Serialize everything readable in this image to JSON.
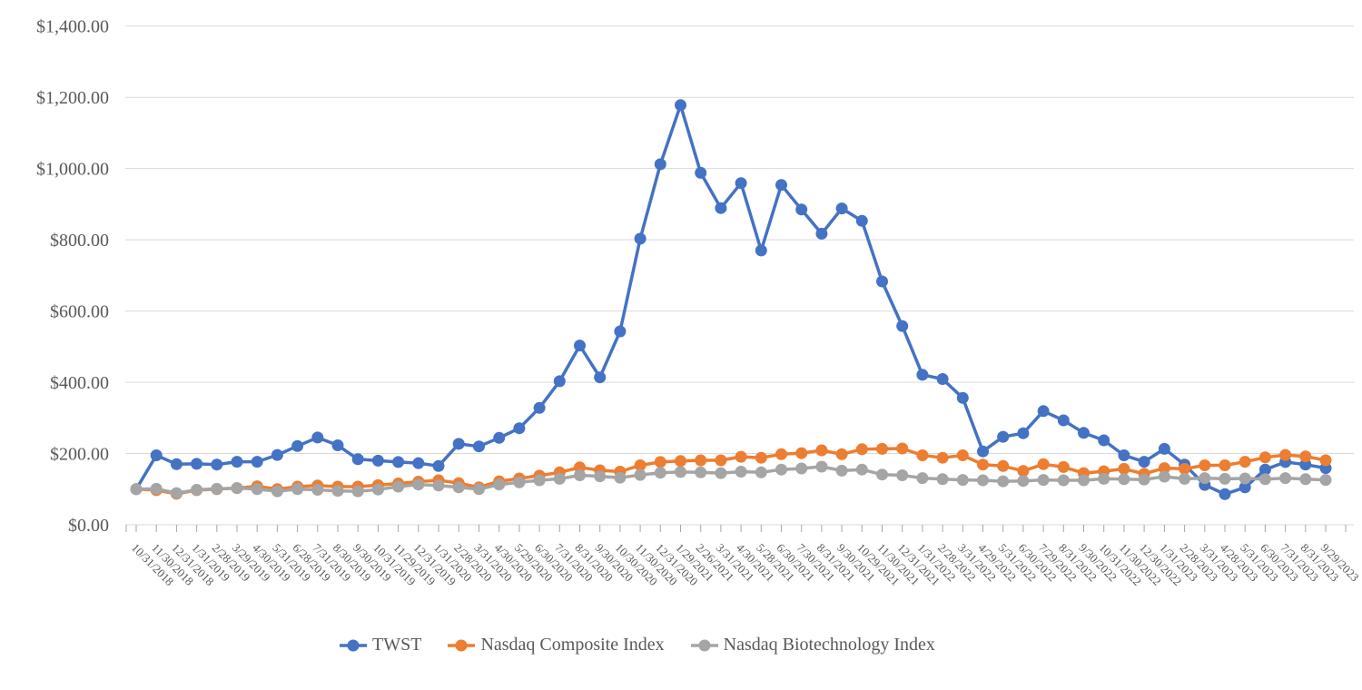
{
  "page": {
    "background_color": "#FFFFFF",
    "title": ""
  },
  "chart_data": {
    "type": "line",
    "title": "",
    "xlabel": "",
    "ylabel": "",
    "grid": true,
    "legend_position": "bottom",
    "gridline_color": "#D9D9D9",
    "tick_color": "#A6A6A6",
    "axis_text_color": "#595959",
    "x_labels": [
      "10/31/2018",
      "11/30/2018",
      "12/31/2018",
      "1/31/2019",
      "2/28/2019",
      "3/29/2019",
      "4/30/2019",
      "5/31/2019",
      "6/28/2019",
      "7/31/2019",
      "8/30/2019",
      "9/30/2019",
      "10/31/2019",
      "11/29/2019",
      "12/31/2019",
      "1/31/2020",
      "2/28/2020",
      "3/31/2020",
      "4/30/2020",
      "5/29/2020",
      "6/30/2020",
      "7/31/2020",
      "8/31/2020",
      "9/30/2020",
      "10/30/2020",
      "11/30/2020",
      "12/31/2020",
      "1/29/2021",
      "2/26/2021",
      "3/31/2021",
      "4/30/2021",
      "5/28/2021",
      "6/30/2021",
      "7/30/2021",
      "8/31/2021",
      "9/30/2021",
      "10/29/2021",
      "11/30/2021",
      "12/31/2021",
      "1/31/2022",
      "2/28/2022",
      "3/31/2022",
      "4/29/2022",
      "5/31/2022",
      "6/30/2022",
      "7/29/2022",
      "8/31/2022",
      "9/30/2022",
      "10/31/2022",
      "11/30/2022",
      "12/30/2022",
      "1/31/2023",
      "2/28/2023",
      "3/31/2023",
      "4/28/2023",
      "5/31/2023",
      "6/30/2023",
      "7/31/2023",
      "8/31/2023",
      "9/29/2023"
    ],
    "y_axis": {
      "min": 0,
      "max": 1400,
      "step": 200,
      "tick_labels": [
        "$0.00",
        "$200.00",
        "$400.00",
        "$600.00",
        "$800.00",
        "$1,000.00",
        "$1,200.00",
        "$1,400.00"
      ]
    },
    "series": [
      {
        "name": "TWST",
        "color": "#4472C4",
        "values": [
          100,
          195,
          170,
          171,
          169,
          177,
          177,
          196,
          221,
          245,
          223,
          184,
          180,
          176,
          173,
          165,
          227,
          220,
          244,
          271,
          328,
          403,
          503,
          414,
          543,
          803,
          1012,
          1178,
          988,
          889,
          959,
          770,
          954,
          885,
          817,
          888,
          853,
          683,
          558,
          421,
          409,
          356,
          206,
          247,
          257,
          319,
          293,
          258,
          237,
          195,
          177,
          213,
          169,
          112,
          86,
          105,
          155,
          176,
          169,
          159
        ]
      },
      {
        "name": "Nasdaq Composite Index",
        "color": "#ED7D31",
        "values": [
          100,
          97,
          87,
          97,
          100,
          103,
          108,
          100,
          107,
          110,
          107,
          107,
          111,
          116,
          121,
          125,
          117,
          105,
          122,
          130,
          138,
          147,
          161,
          153,
          149,
          167,
          176,
          179,
          181,
          181,
          191,
          188,
          198,
          201,
          209,
          198,
          212,
          213,
          214,
          195,
          188,
          195,
          169,
          165,
          151,
          170,
          162,
          145,
          150,
          157,
          143,
          159,
          157,
          167,
          167,
          177,
          189,
          196,
          192,
          181
        ]
      },
      {
        "name": "Nasdaq Biotechnology Index",
        "color": "#A5A5A5",
        "values": [
          100,
          101,
          89,
          98,
          101,
          103,
          100,
          94,
          100,
          98,
          95,
          94,
          99,
          107,
          113,
          110,
          105,
          100,
          113,
          119,
          125,
          129,
          139,
          136,
          132,
          140,
          146,
          148,
          147,
          145,
          149,
          147,
          155,
          158,
          163,
          152,
          155,
          141,
          139,
          131,
          128,
          126,
          125,
          122,
          123,
          126,
          125,
          125,
          129,
          128,
          127,
          135,
          129,
          131,
          129,
          130,
          128,
          131,
          128,
          126
        ]
      }
    ]
  }
}
